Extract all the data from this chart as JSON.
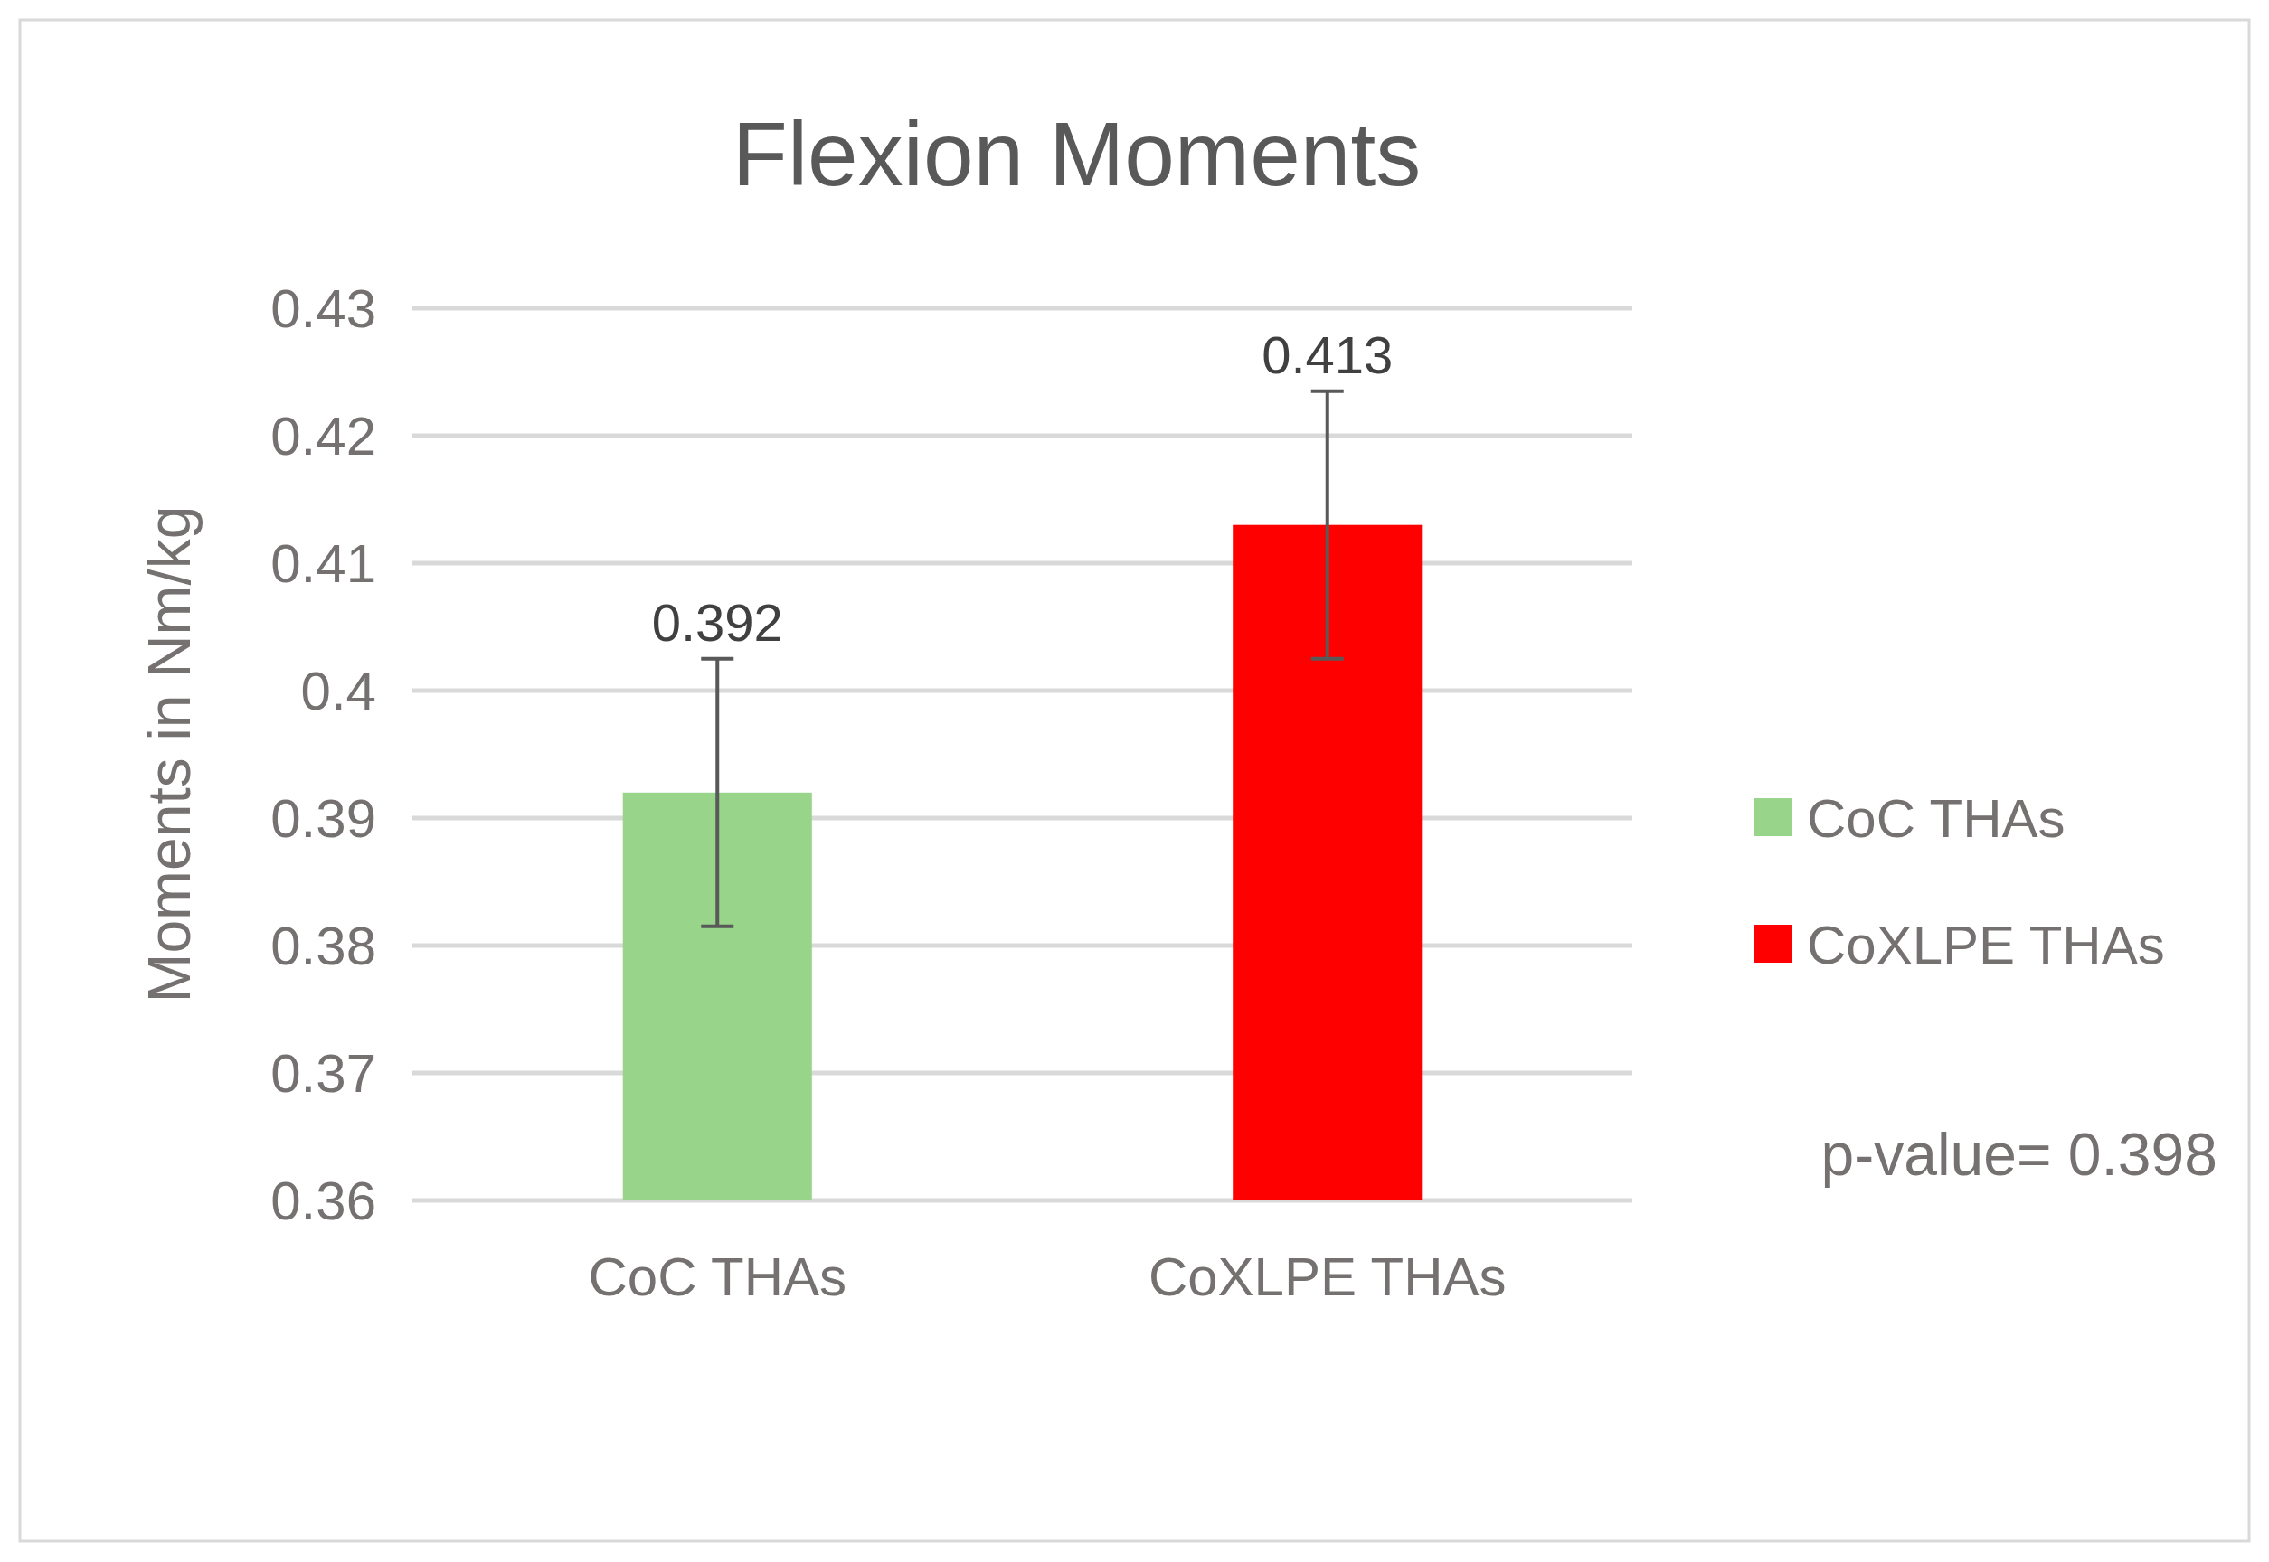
{
  "chart_data": {
    "type": "bar",
    "title": "Flexion Moments",
    "ylabel": "Moments in Nm/kg",
    "categories": [
      "CoC THAs",
      "CoXLPE THAs"
    ],
    "series": [
      {
        "name": "CoC THAs",
        "color": "#98d48a",
        "values": [
          0.392,
          null
        ],
        "errors": [
          0.0105,
          null
        ]
      },
      {
        "name": "CoXLPE THAs",
        "color": "#ff0000",
        "values": [
          null,
          0.413
        ],
        "errors": [
          null,
          0.0105
        ]
      }
    ],
    "ylim": [
      0.36,
      0.43
    ],
    "yticks": [
      0.36,
      0.37,
      0.38,
      0.39,
      {
        "value": 0.4,
        "label": "0.4"
      },
      0.41,
      0.42,
      0.43
    ],
    "grid": "y",
    "legend": "right",
    "data_labels": true,
    "annotations": [
      "p-value= 0.398"
    ]
  }
}
